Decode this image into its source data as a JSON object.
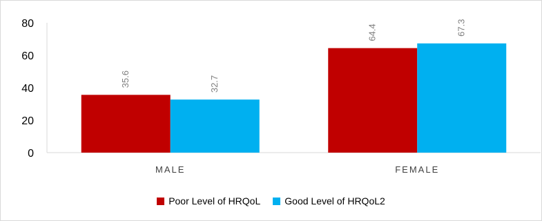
{
  "chart_data": {
    "type": "bar",
    "categories": [
      "MALE",
      "FEMALE"
    ],
    "series": [
      {
        "name": "Poor Level of HRQoL",
        "values": [
          35.6,
          64.4
        ],
        "color": "#c00000"
      },
      {
        "name": "Good Level of HRQoL2",
        "values": [
          32.7,
          67.3
        ],
        "color": "#00b0f0"
      }
    ],
    "ylim": [
      0,
      80
    ],
    "yticks": [
      0,
      20,
      40,
      60,
      80
    ],
    "grid": false,
    "legend_position": "bottom",
    "data_labels": true
  }
}
